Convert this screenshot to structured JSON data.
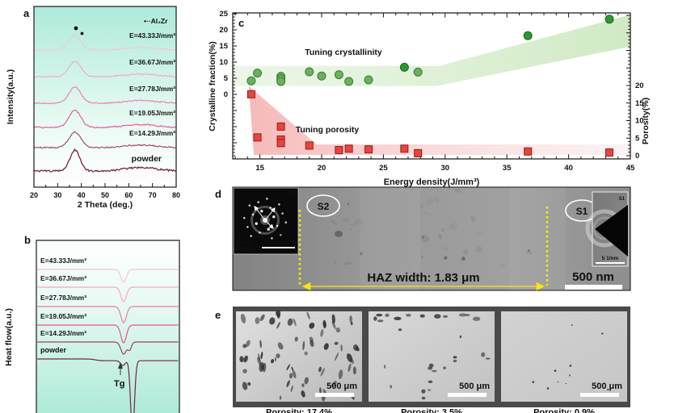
{
  "panel_a": {
    "label": "a",
    "ylabel": "Intensity(a.u.)",
    "xlabel": "2 Theta (deg.)",
    "legend": "•··Al₂Zr",
    "x_ticks": [
      20,
      30,
      40,
      50,
      60,
      70,
      80
    ],
    "bg_top_color": "#aeeada",
    "curves": [
      {
        "label": "E=43.33J/mm³",
        "color": "#f9c2d9",
        "base": 62,
        "amp": 18
      },
      {
        "label": "E=36.67J/mm³",
        "color": "#f6a5c9",
        "base": 95,
        "amp": 19
      },
      {
        "label": "E=27.78J/mm³",
        "color": "#f179b2",
        "base": 128,
        "amp": 20
      },
      {
        "label": "E=19.05J/mm³",
        "color": "#e85198",
        "base": 158,
        "amp": 21
      },
      {
        "label": "E=14.29J/mm³",
        "color": "#a33c60",
        "base": 183,
        "amp": 19
      },
      {
        "label": "powder",
        "color": "#7b2246",
        "base": 212,
        "amp": 26,
        "powder": true
      }
    ]
  },
  "panel_b": {
    "label": "b",
    "ylabel": "Heat flow(a.u.)",
    "tg_label": "Tg",
    "curves": [
      {
        "label": "E=43.33J/mm³",
        "color": "#f9c2d9",
        "base": 46,
        "dip": 16
      },
      {
        "label": "E=36.67J/mm³",
        "color": "#f6a5c9",
        "base": 68,
        "dip": 18
      },
      {
        "label": "E=27.78J/mm³",
        "color": "#f179b2",
        "base": 92,
        "dip": 20
      },
      {
        "label": "E=19.05J/mm³",
        "color": "#e85198",
        "base": 115,
        "dip": 22
      },
      {
        "label": "E=14.29J/mm³",
        "color": "#a33c60",
        "base": 136,
        "dip": 15,
        "double": true
      },
      {
        "label": "powder",
        "color": "#7b2246",
        "base": 157,
        "dip": 88,
        "deep": true
      }
    ]
  },
  "chart_data": {
    "type": "scatter",
    "panel_label": "c",
    "xlabel": "Energy density(J/mm³)",
    "ylabel_left": "Crystalline fraction(%)",
    "ylabel_right": "Porosity(%)",
    "x_ticks": [
      15,
      20,
      25,
      30,
      35,
      40,
      45
    ],
    "y_ticks_left": [
      0,
      5,
      10,
      15,
      20,
      25
    ],
    "y_ticks_right": [
      0,
      5,
      10,
      15,
      20
    ],
    "xlim": [
      12.8,
      45
    ],
    "ylim_left": [
      0,
      25
    ],
    "ylim_right": [
      0,
      20
    ],
    "grid": false,
    "annotations": [
      {
        "text": "Tuning crystallinity",
        "color": "#2aa52a"
      },
      {
        "text": "Tuning porosity",
        "color": "#ee3b33"
      }
    ],
    "series": [
      {
        "name": "Crystalline fraction",
        "marker": "circle",
        "axis": "left",
        "color": "#6cb05c",
        "points": [
          [
            14.3,
            4.2
          ],
          [
            14.8,
            6.6
          ],
          [
            16.7,
            5.6
          ],
          [
            16.7,
            4.8
          ],
          [
            16.7,
            4.0
          ],
          [
            19.0,
            7.0
          ],
          [
            20.0,
            5.7
          ],
          [
            21.4,
            6.1
          ],
          [
            22.2,
            4.0
          ],
          [
            23.8,
            4.5
          ],
          [
            26.7,
            8.4
          ],
          [
            27.8,
            6.9
          ],
          [
            36.7,
            18.2
          ],
          [
            43.3,
            23.3
          ]
        ],
        "dark_points": [
          10,
          12,
          13
        ]
      },
      {
        "name": "Porosity",
        "marker": "square",
        "axis": "right",
        "color": "#e8453c",
        "points": [
          [
            14.3,
            17.5
          ],
          [
            14.8,
            5.2
          ],
          [
            16.7,
            8.3
          ],
          [
            16.7,
            4.6
          ],
          [
            16.7,
            3.6
          ],
          [
            19.0,
            2.9
          ],
          [
            21.4,
            1.6
          ],
          [
            22.2,
            2.0
          ],
          [
            23.8,
            1.8
          ],
          [
            26.7,
            2.0
          ],
          [
            27.8,
            0.7
          ],
          [
            36.7,
            1.2
          ],
          [
            43.3,
            0.9
          ]
        ]
      }
    ],
    "regions": {
      "crystallinity": [
        [
          12.8,
          2.6
        ],
        [
          12.8,
          8.8
        ],
        [
          29.5,
          8.8
        ],
        [
          45,
          24.7
        ],
        [
          45,
          14.8
        ],
        [
          29.3,
          2.6
        ]
      ],
      "porosity": [
        [
          14.1,
          19.8
        ],
        [
          19.6,
          3.2
        ],
        [
          45,
          3.2
        ],
        [
          45,
          0.2
        ],
        [
          14.5,
          0.2
        ]
      ]
    },
    "colors": {
      "green": "#6cb05c",
      "green_dark": "#2f9635",
      "green_axis": "#2aa52a",
      "red": "#e8453c",
      "red_axis": "#ee3b33"
    }
  },
  "panel_d": {
    "label": "d",
    "s2_label": "S2",
    "s1_label": "S1",
    "haz_label": "HAZ width: 1.83 μm",
    "scalebar_label": "500 nm",
    "accent_yellow": "#ffe600",
    "inset_left": {
      "tag": "S2",
      "indices": [
        "1̄100",
        "011̄0",
        "101̄0"
      ],
      "phase": "Al₂Zr",
      "zone": "z=[0001]",
      "scalebar": "5 1/nm"
    },
    "inset_right": {
      "tag": "S1",
      "scalebar": "5 1/nm"
    }
  },
  "panel_e": {
    "label": "e",
    "images": [
      {
        "scalebar": "500 μm",
        "caption": "Porosity: 17.4%"
      },
      {
        "scalebar": "500 μm",
        "caption": "Porosity: 3.5%"
      },
      {
        "scalebar": "500 μm",
        "caption": "Porosity: 0.9%"
      }
    ]
  }
}
